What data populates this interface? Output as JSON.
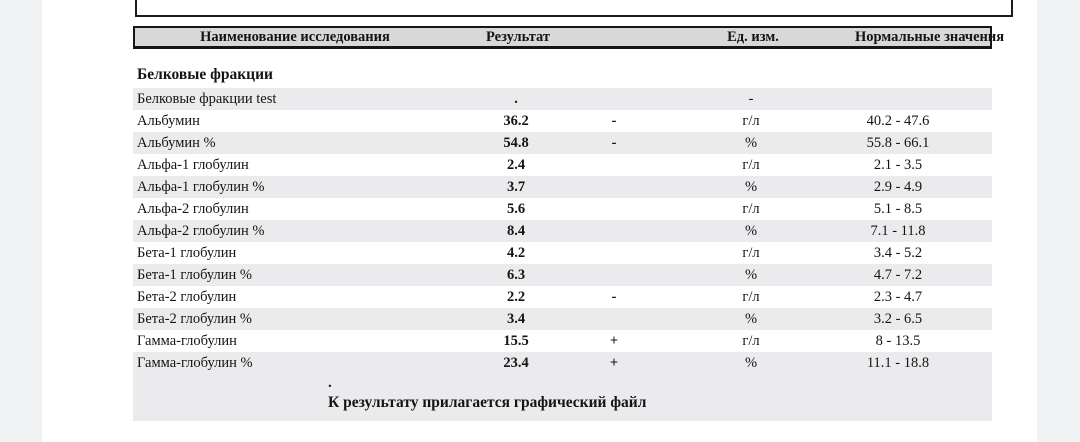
{
  "colors": {
    "viewer_background": "#f1f2f4",
    "page_background": "#ffffff",
    "header_fill": "#d8d8d8",
    "shaded_row_fill": "#ebebed",
    "border": "#1c1c1c",
    "text": "#141414"
  },
  "table": {
    "columns": [
      "Наименование исследования",
      "Результат",
      "Ед. изм.",
      "Нормальные значения"
    ],
    "section_title": "Белковые фракции",
    "rows": [
      {
        "name": "Белковые фракции test",
        "result": ".",
        "flag": "",
        "unit": "-",
        "normal": "",
        "shaded": true
      },
      {
        "name": "Альбумин",
        "result": "36.2",
        "flag": "-",
        "unit": "г/л",
        "normal": "40.2 - 47.6",
        "shaded": false
      },
      {
        "name": "Альбумин %",
        "result": "54.8",
        "flag": "-",
        "unit": "%",
        "normal": "55.8 - 66.1",
        "shaded": true
      },
      {
        "name": "Альфа-1 глобулин",
        "result": "2.4",
        "flag": "",
        "unit": "г/л",
        "normal": "2.1 - 3.5",
        "shaded": false
      },
      {
        "name": "Альфа-1 глобулин %",
        "result": "3.7",
        "flag": "",
        "unit": "%",
        "normal": "2.9 - 4.9",
        "shaded": true
      },
      {
        "name": "Альфа-2 глобулин",
        "result": "5.6",
        "flag": "",
        "unit": "г/л",
        "normal": "5.1 - 8.5",
        "shaded": false
      },
      {
        "name": "Альфа-2 глобулин %",
        "result": "8.4",
        "flag": "",
        "unit": "%",
        "normal": "7.1 - 11.8",
        "shaded": true
      },
      {
        "name": "Бета-1 глобулин",
        "result": "4.2",
        "flag": "",
        "unit": "г/л",
        "normal": "3.4 - 5.2",
        "shaded": false
      },
      {
        "name": "Бета-1 глобулин %",
        "result": "6.3",
        "flag": "",
        "unit": "%",
        "normal": "4.7 - 7.2",
        "shaded": true
      },
      {
        "name": "Бета-2 глобулин",
        "result": "2.2",
        "flag": "-",
        "unit": "г/л",
        "normal": "2.3 - 4.7",
        "shaded": false
      },
      {
        "name": "Бета-2 глобулин %",
        "result": "3.4",
        "flag": "",
        "unit": "%",
        "normal": "3.2 - 6.5",
        "shaded": true
      },
      {
        "name": "Гамма-глобулин",
        "result": "15.5",
        "flag": "+",
        "unit": "г/л",
        "normal": "8 - 13.5",
        "shaded": false
      },
      {
        "name": "Гамма-глобулин %",
        "result": "23.4",
        "flag": "+",
        "unit": "%",
        "normal": "11.1 - 18.8",
        "shaded": true
      }
    ],
    "footer": {
      "dot": ".",
      "note": "К результату прилагается графический файл"
    }
  }
}
